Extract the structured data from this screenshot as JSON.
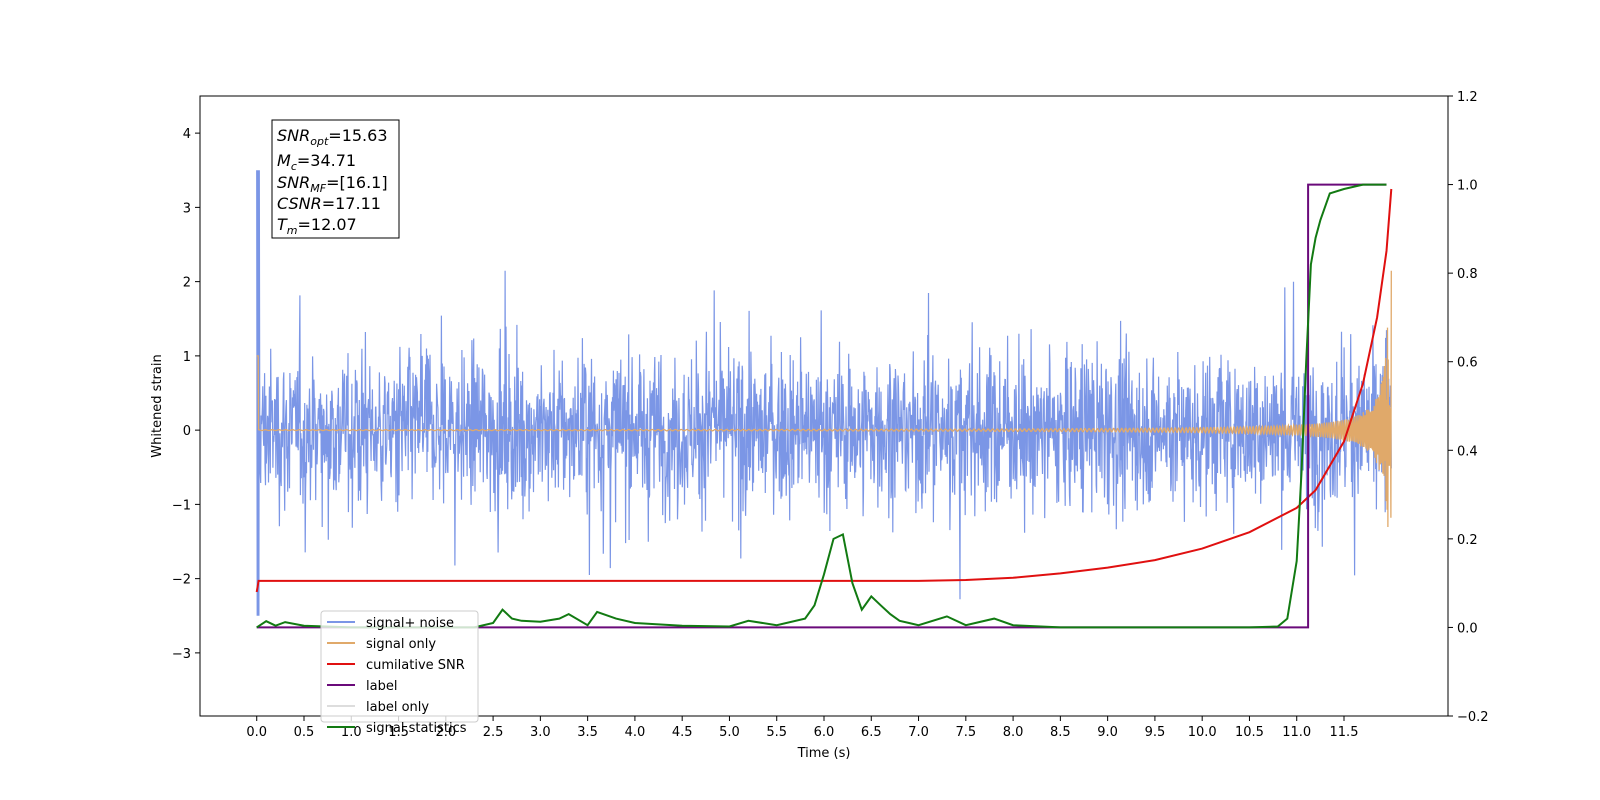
{
  "chart_data": {
    "type": "line",
    "xlabel": "Time (s)",
    "ylabel": "Whitened strain",
    "xlim": [
      -0.6,
      12.6
    ],
    "ylim": [
      -3.85,
      4.5
    ],
    "ylim_right": [
      -0.2,
      1.2
    ],
    "x_ticks": [
      "0.0",
      "0.5",
      "1.0",
      "1.5",
      "2.0",
      "2.5",
      "3.0",
      "3.5",
      "4.0",
      "4.5",
      "5.0",
      "5.5",
      "6.0",
      "6.5",
      "7.0",
      "7.5",
      "8.0",
      "8.5",
      "9.0",
      "9.5",
      "10.0",
      "10.5",
      "11.0",
      "11.5"
    ],
    "y_ticks_left": [
      "4",
      "3",
      "2",
      "1",
      "0",
      "−1",
      "−2",
      "−3"
    ],
    "y_ticks_right": [
      "1.2",
      "1.0",
      "0.8",
      "0.6",
      "0.4",
      "0.2",
      "0.0",
      "−0.2"
    ],
    "grid": false,
    "legend_position": "lower-left",
    "info_box": {
      "lines": [
        {
          "sym": "SNR",
          "sub": "opt",
          "val": "=15.63"
        },
        {
          "sym": "M",
          "sub": "c",
          "val": "=34.71"
        },
        {
          "sym": "SNR",
          "sub": "MF",
          "val": "=[16.1]"
        },
        {
          "sym": "CSNR",
          "sub": "",
          "val": "=17.11"
        },
        {
          "sym": "T",
          "sub": "m",
          "val": "=12.07"
        }
      ]
    },
    "series": [
      {
        "name": "signal+ noise",
        "color": "#7b96e6",
        "axis": "left",
        "style": "dense-noise",
        "x_range": [
          0,
          12.0
        ],
        "approx_envelope": [
          -2.8,
          2.8
        ]
      },
      {
        "name": "signal only",
        "color": "#e0a96a",
        "axis": "left",
        "style": "chirp",
        "x_range": [
          0,
          12.0
        ],
        "peak_amplitude": 2.3
      },
      {
        "name": "cumilative SNR",
        "color": "#e01010",
        "axis": "right",
        "x": [
          0,
          0.02,
          1,
          2,
          3,
          4,
          5,
          6,
          7,
          7.5,
          8,
          8.5,
          9,
          9.5,
          10,
          10.5,
          11,
          11.2,
          11.5,
          11.7,
          11.85,
          11.95,
          12.0
        ],
        "y": [
          0.08,
          0.105,
          0.105,
          0.105,
          0.105,
          0.105,
          0.105,
          0.105,
          0.105,
          0.107,
          0.112,
          0.122,
          0.135,
          0.152,
          0.178,
          0.215,
          0.27,
          0.31,
          0.42,
          0.55,
          0.7,
          0.85,
          0.99
        ]
      },
      {
        "name": "label",
        "color": "#6a0a7a",
        "axis": "right",
        "x": [
          0,
          11.08,
          11.08,
          11.12,
          11.12,
          11.95
        ],
        "y": [
          0.0,
          0.0,
          0.0,
          0.0,
          1.0,
          1.0
        ]
      },
      {
        "name": "label only",
        "color": "#dddddd",
        "axis": "right",
        "x": [],
        "y": []
      },
      {
        "name": "signal statistics",
        "color": "#127a12",
        "axis": "right",
        "x": [
          0,
          0.1,
          0.2,
          0.3,
          0.5,
          1.0,
          1.5,
          2.0,
          2.3,
          2.5,
          2.6,
          2.7,
          2.8,
          3.0,
          3.2,
          3.3,
          3.5,
          3.6,
          3.8,
          4.0,
          4.5,
          5.0,
          5.2,
          5.5,
          5.8,
          5.9,
          6.0,
          6.1,
          6.2,
          6.3,
          6.4,
          6.5,
          6.6,
          6.7,
          6.8,
          6.9,
          7.0,
          7.3,
          7.5,
          7.6,
          7.8,
          8.0,
          8.5,
          9.0,
          9.5,
          10.0,
          10.5,
          10.8,
          10.9,
          11.0,
          11.05,
          11.1,
          11.15,
          11.2,
          11.25,
          11.35,
          11.5,
          11.7,
          11.8,
          11.95
        ],
        "y": [
          0.0,
          0.014,
          0.004,
          0.012,
          0.004,
          0.0,
          0.0,
          0.0,
          0.0,
          0.01,
          0.04,
          0.02,
          0.015,
          0.013,
          0.02,
          0.03,
          0.005,
          0.035,
          0.02,
          0.01,
          0.004,
          0.002,
          0.015,
          0.005,
          0.02,
          0.05,
          0.12,
          0.2,
          0.21,
          0.1,
          0.04,
          0.07,
          0.05,
          0.03,
          0.015,
          0.01,
          0.005,
          0.025,
          0.005,
          0.01,
          0.02,
          0.005,
          0.0,
          0.0,
          0.0,
          0.0,
          0.0,
          0.002,
          0.02,
          0.15,
          0.35,
          0.6,
          0.82,
          0.88,
          0.92,
          0.98,
          0.99,
          1.0,
          1.0,
          1.0
        ]
      }
    ]
  }
}
